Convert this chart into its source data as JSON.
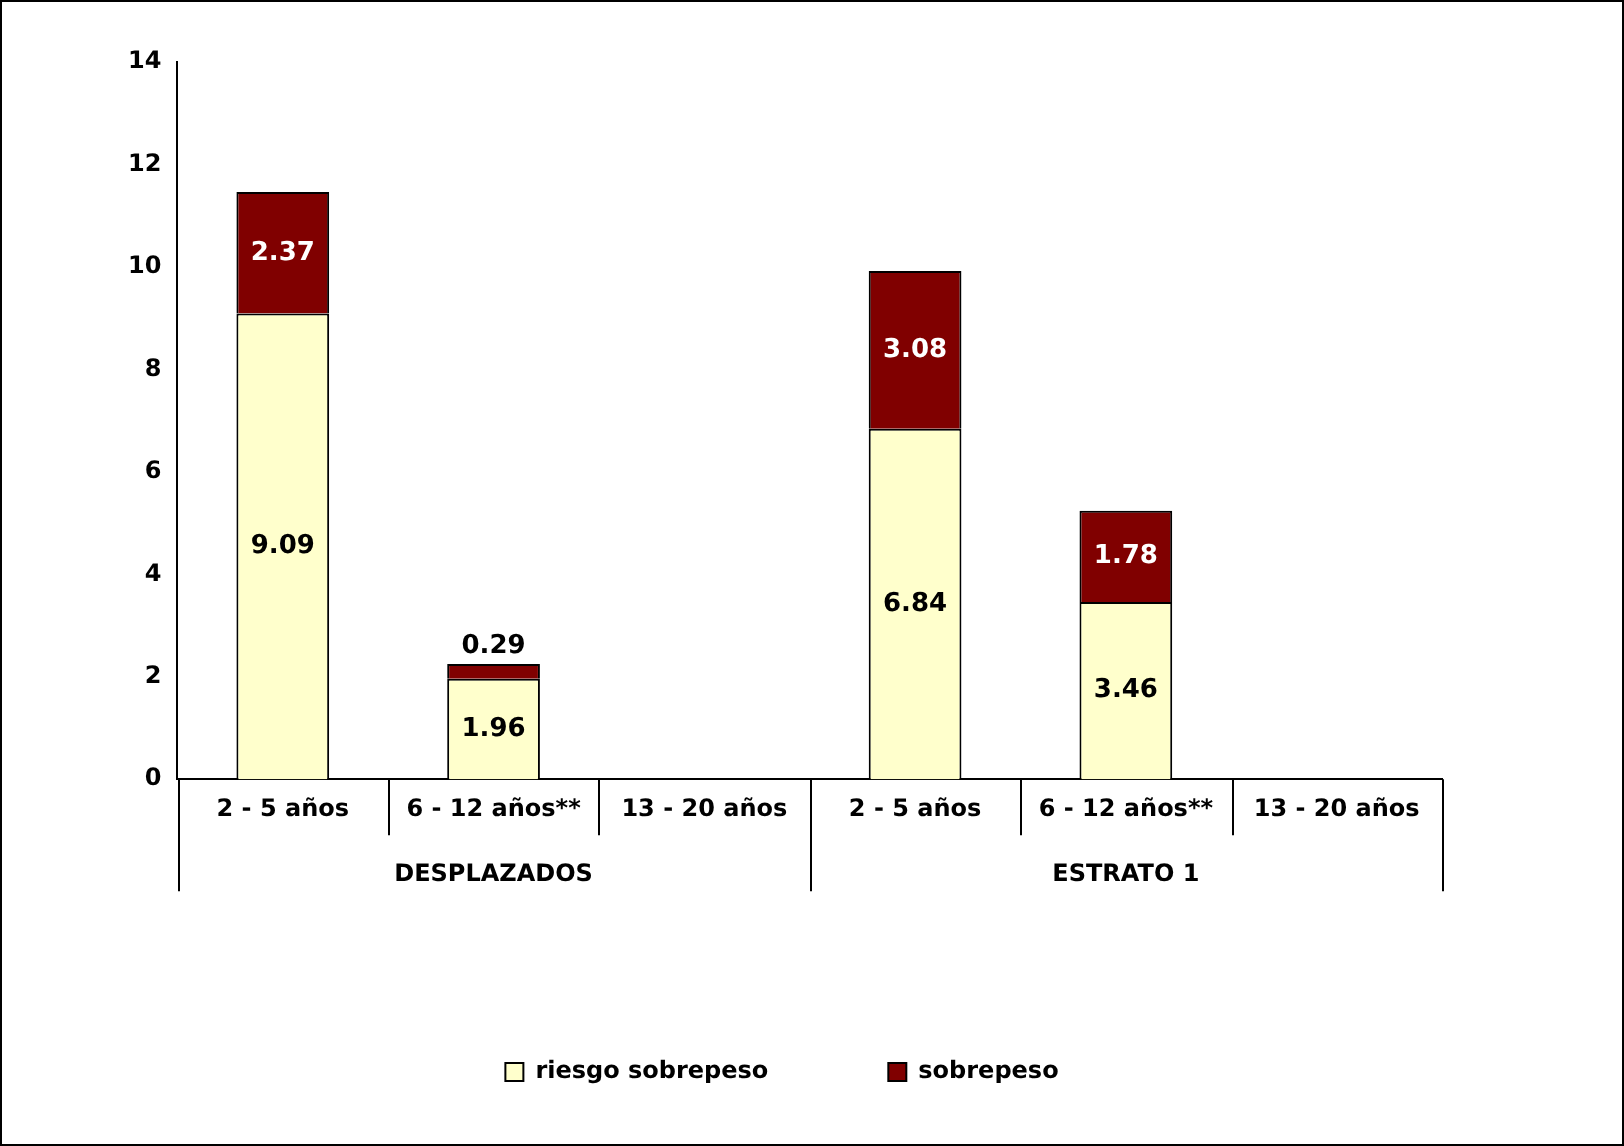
{
  "chart_data": {
    "type": "bar",
    "stacked": true,
    "categories": [
      "2 - 5 años",
      "6 - 12 años**",
      "13 - 20 años",
      "2 - 5 años",
      "6 - 12 años**",
      "13 - 20 años"
    ],
    "series": [
      {
        "name": "riesgo sobrepeso",
        "color": "#ffffcc",
        "values": [
          9.09,
          1.96,
          null,
          6.84,
          3.46,
          null
        ]
      },
      {
        "name": "sobrepeso",
        "color": "#800000",
        "values": [
          2.37,
          0.29,
          null,
          3.08,
          1.78,
          null
        ]
      }
    ],
    "ylim": [
      0,
      14
    ],
    "yticks": [
      0,
      2,
      4,
      6,
      8,
      10,
      12,
      14
    ],
    "grid": false,
    "legend": "bottom",
    "data_labels": true,
    "annotations": [
      "DESPLAZADOS",
      "ESTRATO 1"
    ]
  }
}
